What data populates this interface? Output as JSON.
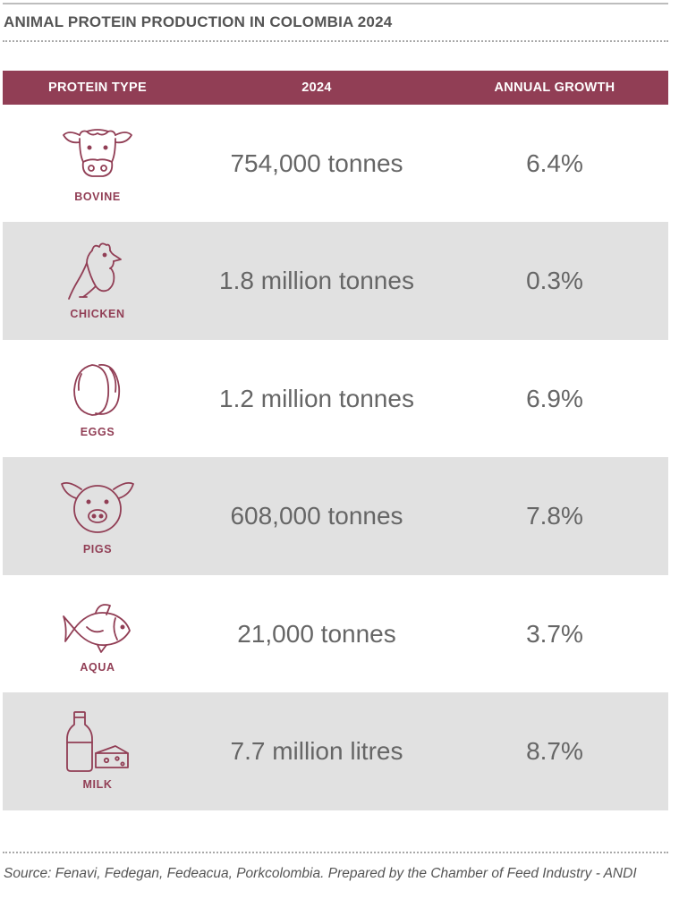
{
  "title": "ANIMAL PROTEIN PRODUCTION IN COLOMBIA 2024",
  "header": {
    "col1": "PROTEIN TYPE",
    "col2": "2024",
    "col3": "ANNUAL GROWTH"
  },
  "rows": [
    {
      "label": "BOVINE",
      "icon": "cow-icon",
      "production": "754,000 tonnes",
      "growth": "6.4%"
    },
    {
      "label": "CHICKEN",
      "icon": "chicken-icon",
      "production": "1.8 million tonnes",
      "growth": "0.3%"
    },
    {
      "label": "EGGS",
      "icon": "eggs-icon",
      "production": "1.2 million tonnes",
      "growth": "6.9%"
    },
    {
      "label": "PIGS",
      "icon": "pig-icon",
      "production": "608,000 tonnes",
      "growth": "7.8%"
    },
    {
      "label": "AQUA",
      "icon": "fish-icon",
      "production": "21,000 tonnes",
      "growth": "3.7%"
    },
    {
      "label": "MILK",
      "icon": "milk-cheese-icon",
      "production": "7.7 million litres",
      "growth": "8.7%"
    }
  ],
  "source": "Source: Fenavi, Fedegan, Fedeacua, Porkcolombia. Prepared by the Chamber of Feed Industry - ANDI",
  "colors": {
    "accent": "#913e55",
    "stripe": "#e1e1e1",
    "text": "#666666"
  }
}
